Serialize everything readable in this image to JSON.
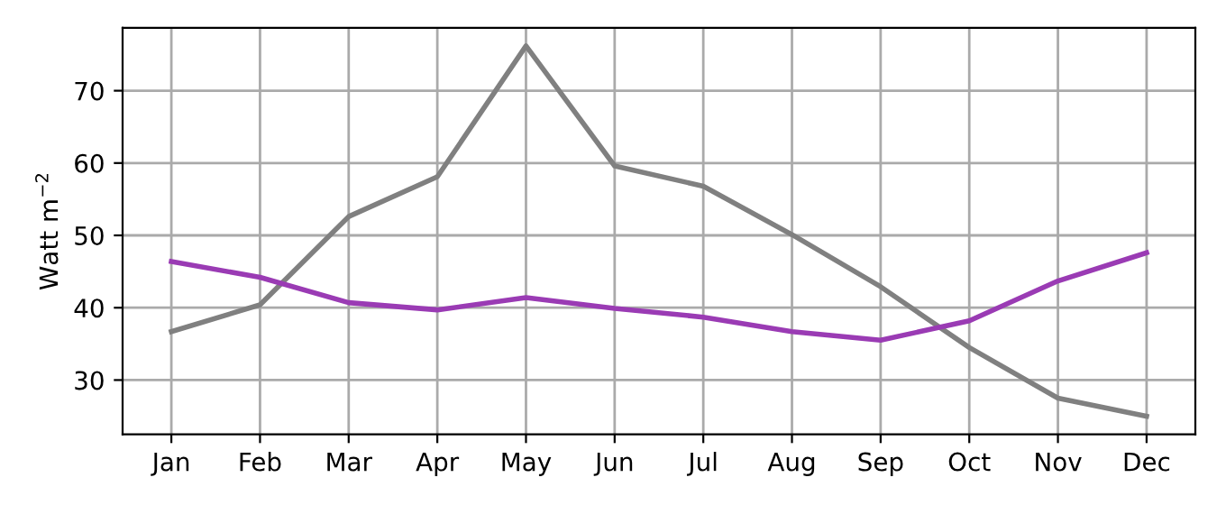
{
  "chart_data": {
    "type": "line",
    "ylabel": "Watt m$^{−2}$",
    "categories": [
      "Jan",
      "Feb",
      "Mar",
      "Apr",
      "May",
      "Jun",
      "Jul",
      "Aug",
      "Sep",
      "Oct",
      "Nov",
      "Dec"
    ],
    "series": [
      {
        "color": "#808080",
        "values": [
          36.7,
          40.4,
          52.6,
          58.1,
          76.2,
          59.6,
          56.8,
          50.1,
          42.9,
          34.5,
          27.5,
          25.0
        ]
      },
      {
        "color": "#9a3bb4",
        "values": [
          46.4,
          44.2,
          40.7,
          39.7,
          41.4,
          39.9,
          38.7,
          36.7,
          35.5,
          38.2,
          43.7,
          47.6
        ]
      }
    ],
    "ylim": [
      22.5,
      78.7
    ],
    "yticks": [
      30,
      40,
      50,
      60,
      70
    ],
    "grid": true,
    "marker": "none",
    "line_style": "solid"
  }
}
